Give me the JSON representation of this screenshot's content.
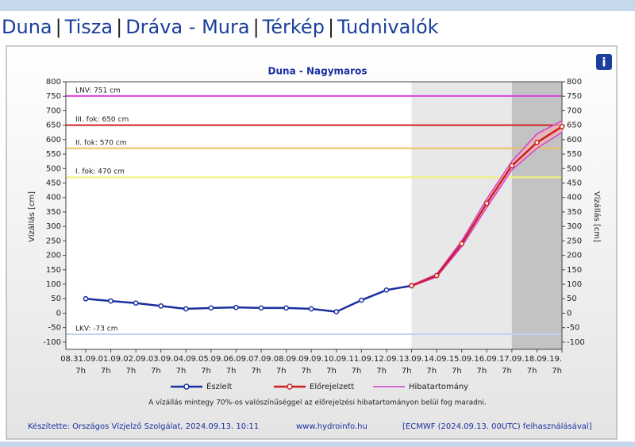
{
  "nav": {
    "items": [
      "Duna",
      "Tisza",
      "Dráva - Mura",
      "Térkép",
      "Tudnivalók"
    ],
    "separator": "|"
  },
  "chart_data": {
    "type": "line",
    "title": "Duna - Nagymaros",
    "ylabel": "Vízállás [cm]",
    "categories": [
      "08.31.",
      "09.01.",
      "09.02.",
      "09.03.",
      "09.04.",
      "09.05.",
      "09.06.",
      "09.07.",
      "09.08.",
      "09.09.",
      "09.10.",
      "09.11.",
      "09.12.",
      "09.13.",
      "09.14.",
      "09.15.",
      "09.16.",
      "09.17.",
      "09.18.",
      "09.19."
    ],
    "times": [
      "7h",
      "7h",
      "7h",
      "7h",
      "7h",
      "7h",
      "7h",
      "7h",
      "7h",
      "7h",
      "7h",
      "7h",
      "7h",
      "7h",
      "7h",
      "7h",
      "7h",
      "7h",
      "7h",
      "7h"
    ],
    "series": [
      {
        "name": "Észlelt",
        "color": "#1a2fa0",
        "values": [
          50,
          42,
          35,
          25,
          15,
          18,
          20,
          18,
          18,
          15,
          5,
          45,
          80,
          95,
          null,
          null,
          null,
          null,
          null,
          null
        ]
      },
      {
        "name": "Előrejelzett",
        "color": "#cc2020",
        "values": [
          null,
          null,
          null,
          null,
          null,
          null,
          null,
          null,
          null,
          null,
          null,
          null,
          null,
          95,
          130,
          240,
          380,
          510,
          590,
          645
        ]
      },
      {
        "name": "Hibatartomány",
        "color": "#d040d0",
        "upper": [
          null,
          null,
          null,
          null,
          null,
          null,
          null,
          null,
          null,
          null,
          null,
          null,
          null,
          97,
          135,
          250,
          395,
          525,
          620,
          665
        ],
        "lower": [
          null,
          null,
          null,
          null,
          null,
          null,
          null,
          null,
          null,
          null,
          null,
          null,
          null,
          93,
          125,
          230,
          365,
          495,
          570,
          625
        ]
      }
    ],
    "reference_lines": [
      {
        "label": "LNV: 751 cm",
        "value": 751,
        "color": "#e040e0"
      },
      {
        "label": "III. fok: 650 cm",
        "value": 650,
        "color": "#d02020"
      },
      {
        "label": "II. fok: 570 cm",
        "value": 570,
        "color": "#f0c060"
      },
      {
        "label": "I. fok: 470 cm",
        "value": 470,
        "color": "#f0f080"
      },
      {
        "label": "LKV: -73 cm",
        "value": -73,
        "color": "#c0d0f0"
      }
    ],
    "shaded_regions": [
      {
        "from": "09.13.",
        "to": "09.17.",
        "color": "#e2e2e2"
      },
      {
        "from": "09.17.",
        "to": "09.19.",
        "color": "#b4b4b4"
      }
    ],
    "ylim": [
      -125,
      800
    ],
    "yticks": [
      -100,
      -50,
      0,
      50,
      100,
      150,
      200,
      250,
      300,
      350,
      400,
      450,
      500,
      550,
      600,
      650,
      700,
      750,
      800
    ],
    "grid": false,
    "note": "A vízállás mintegy 70%-os valószínűséggel az előrejelzési hibatartományon belül fog maradni.",
    "footer": [
      "Készítette: Országos Vízjelző Szolgálat, 2024.09.13. 10:11",
      "www.hydroinfo.hu",
      "[ECMWF (2024.09.13. 00UTC) felhasználásával]"
    ],
    "icon": "i"
  }
}
